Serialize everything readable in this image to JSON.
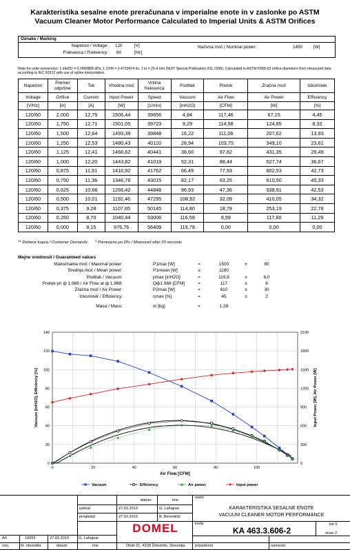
{
  "title": {
    "line1": "Karakteristika sesalne enote preračunana v imperialne enote in v zaslonke po ASTM",
    "line2": "Vacuum Cleaner Motor Performance Calculated to Imperial Units & ASTM Orifices"
  },
  "marking": {
    "heading": "Oznake / Marking",
    "voltage_label": "Napetost / Voltage:",
    "voltage_value": "120",
    "voltage_unit": "[V]",
    "freq_label": "Frekvenca / Frekvency:",
    "freq_value": "60",
    "freq_unit": "[Hz]",
    "power_label": "Nazivna moč / Nominal power:",
    "power_value": "1450",
    "power_unit": "[W]"
  },
  "note": {
    "line1": "Note for unite conversion: 1 inH2O = 0.2490889 kPa, 1 CFM = 0.4719474 l/s, 1 in = 25.4 mm (NIST Special Publication 811,1995). Calculated to ASTM F558-03 orifice diameters from measured data",
    "line2": "according to IEC 60312 with use of spline interpolation."
  },
  "table": {
    "headers_sl": [
      "Napetost",
      "Premer odprtine",
      "Tok",
      "Vhodna moč",
      "Vrtilna frekvenca",
      "Podtlak",
      "Pretok",
      "Zračna moč",
      "Izkoristek"
    ],
    "headers_en": [
      "Voltage",
      "Orifice",
      "Current",
      "Input Power",
      "Speed",
      "Vacuum",
      "Air Flow",
      "Air Power",
      "Efficiency"
    ],
    "units": [
      "[V/Hz]",
      "[in]",
      "[A]",
      "[W]",
      "[1/min]",
      "[inH2O]",
      "[CFM]",
      "[W]",
      "[%]"
    ],
    "rows": [
      [
        "120/60",
        "2,000",
        "12,75",
        "1506,44",
        "39656",
        "4,84",
        "117,46",
        "67,15",
        "4,45"
      ],
      [
        "120/60",
        "1,750",
        "12,71",
        "1501,05",
        "39723",
        "9,29",
        "114,98",
        "124,85",
        "8,32"
      ],
      [
        "120/60",
        "1,500",
        "12,64",
        "1493,39",
        "39848",
        "16,22",
        "111,06",
        "207,62",
        "13,93"
      ],
      [
        "120/60",
        "1,250",
        "12,53",
        "1480,43",
        "40110",
        "28,94",
        "103,75",
        "349,10",
        "23,61"
      ],
      [
        "120/60",
        "1,125",
        "12,41",
        "1466,62",
        "40441",
        "38,60",
        "97,62",
        "431,35",
        "29,49"
      ],
      [
        "120/60",
        "1,000",
        "12,20",
        "1443,82",
        "41019",
        "52,31",
        "88,44",
        "527,74",
        "36,67"
      ],
      [
        "120/60",
        "0,875",
        "11,91",
        "1410,92",
        "41762",
        "66,49",
        "77,93",
        "602,53",
        "42,73"
      ],
      [
        "120/60",
        "0,750",
        "11,36",
        "1346,76",
        "43015",
        "82,17",
        "63,25",
        "610,50",
        "45,33"
      ],
      [
        "120/60",
        "0,625",
        "10,66",
        "1266,42",
        "44848",
        "96,93",
        "47,36",
        "538,91",
        "42,53"
      ],
      [
        "120/60",
        "0,500",
        "10,01",
        "1192,46",
        "47295",
        "108,92",
        "32,09",
        "410,05",
        "34,32"
      ],
      [
        "120/60",
        "0,375",
        "9,28",
        "1107,65",
        "50145",
        "114,80",
        "18,78",
        "253,19",
        "22,76"
      ],
      [
        "120/60",
        "0,250",
        "8,70",
        "1040,44",
        "53006",
        "116,58",
        "8,59",
        "117,60",
        "11,29"
      ],
      [
        "120/60",
        "0,000",
        "8,15",
        "976,76",
        "56409",
        "119,78",
        "0,00",
        "0,00",
        "0,00"
      ]
    ],
    "footnote1": "** Zahteve kupca / Customer Demands;",
    "footnote2": "* Pomerjeno po 20s / Measured after 20 seconds"
  },
  "guaranteed": {
    "heading": "Mejne vrednosti / Guaranteed values",
    "rows": [
      {
        "label": "Maksimalna moč / Maximal power:",
        "symbol": "P1max [W]",
        "rel": "=",
        "value": "1500",
        "pm": "±",
        "tol": "80"
      },
      {
        "label": "Srednja moč / Mean power:",
        "symbol": "P1mean [W]",
        "rel": "≥",
        "value": "1180",
        "pm": "",
        "tol": ""
      },
      {
        "label": "Podtlak / Vacuum:",
        "symbol": "pmax [inH2O]",
        "rel": "=",
        "value": "119,8",
        "pm": "±",
        "tol": "6,0"
      },
      {
        "label": "Pretok pri ф 1,968 / Air Flow at ф 1,968:",
        "symbol": "Qф1.968 [CFM]",
        "rel": "=",
        "value": "117",
        "pm": "±",
        "tol": "6"
      },
      {
        "label": "Zračna moč / Air Power:",
        "symbol": "P2max [W]",
        "rel": "=",
        "value": "610",
        "pm": "±",
        "tol": "30"
      },
      {
        "label": "Izkoristek / Efficiency:",
        "symbol": "ηmax [%]",
        "rel": "=",
        "value": "45",
        "pm": "±",
        "tol": "2"
      },
      {
        "label": "Masa / Mass:",
        "symbol": "m [kg]",
        "rel": "=",
        "value": "1,28",
        "pm": "",
        "tol": ""
      }
    ]
  },
  "chart_data": {
    "type": "line",
    "xlabel": "Air Flow [CFM]",
    "ylabel_left": "Vacuum [inH2O], Efficiency [%]",
    "ylabel_right": "Input Power [W], Air Power [W]",
    "xlim": [
      0,
      120
    ],
    "ylim_left": [
      0,
      140
    ],
    "ylim_right": [
      0,
      2100
    ],
    "x_ticks": [
      "0",
      "20",
      "40",
      "60",
      "80",
      "100"
    ],
    "y_left_ticks": [
      "0",
      "20",
      "40",
      "60",
      "80",
      "100",
      "120",
      "140"
    ],
    "y_right_ticks": [
      "0",
      "300",
      "600",
      "900",
      "1200",
      "1500",
      "1800",
      "2100"
    ],
    "grid": true,
    "legend_position": "bottom",
    "x": [
      117.46,
      114.98,
      111.06,
      103.75,
      97.62,
      88.44,
      77.93,
      63.25,
      47.36,
      32.09,
      18.78,
      8.59,
      0.0
    ],
    "series": [
      {
        "name": "Vacuum",
        "axis": "left",
        "color": "#1f3fd6",
        "marker": "square",
        "values": [
          4.84,
          9.29,
          16.22,
          28.94,
          38.6,
          52.31,
          66.49,
          82.17,
          96.93,
          108.92,
          114.8,
          116.58,
          119.78
        ]
      },
      {
        "name": "Efficiency",
        "axis": "left",
        "color": "#000000",
        "marker": "circle",
        "values": [
          4.45,
          8.32,
          13.93,
          23.61,
          29.49,
          36.67,
          42.73,
          45.33,
          42.53,
          34.32,
          22.76,
          11.29,
          0.0
        ]
      },
      {
        "name": "Air power",
        "axis": "right",
        "color": "#1a9e1a",
        "marker": "triangle",
        "values": [
          67.15,
          124.85,
          207.62,
          349.1,
          431.35,
          527.74,
          602.53,
          610.5,
          538.91,
          410.05,
          253.19,
          117.6,
          0.0
        ]
      },
      {
        "name": "Input power",
        "axis": "right",
        "color": "#e02020",
        "marker": "diamond",
        "values": [
          1506.44,
          1501.05,
          1493.39,
          1480.43,
          1466.62,
          1443.82,
          1410.92,
          1346.76,
          1266.42,
          1192.46,
          1107.65,
          1040.44,
          976.76
        ]
      }
    ]
  },
  "titleblock": {
    "col_datum": "datum",
    "col_ime": "ime",
    "naziv_label": "naziv",
    "izdelal_label": "izdelal",
    "izdelal_date": "27.02.2013",
    "izdelal_name": "G. Lahajnar",
    "pregledal_label": "pregledal",
    "pregledal_date": "27.02.2013",
    "pregledal_name": "B. Benedičič",
    "naziv_line1": "KARAKTERISTIKA SESALNE ENOTE",
    "naziv_line2": "VACUUM CLEANER MOTOR PERFORMANCE",
    "koda_label": "koda",
    "list_label": "list 5",
    "code": "KA 463.3.606-2",
    "page": "stran 2",
    "brand": "DOMEL",
    "rev_letter": "A0",
    "rev_number": "10656",
    "rev_date": "27.02.2013",
    "rev_name": "G. Lahajnar",
    "ozn": "ozn.",
    "st_obvestila": "št. obvestila",
    "datum_bottom": "datum",
    "ime_bottom": "ime",
    "address": "Otoki 21, 4228 Železniki, Slovenija",
    "pripadnost": "pripadnost",
    "namesto": "namesto"
  }
}
